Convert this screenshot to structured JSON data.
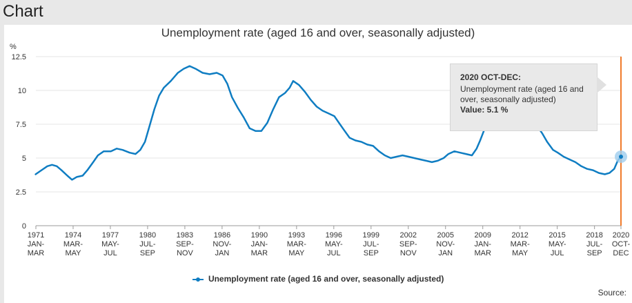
{
  "panel": {
    "title": "Chart"
  },
  "chart_data": {
    "type": "line",
    "title": "Unemployment rate (aged 16 and over, seasonally adjusted)",
    "ylabel": "%",
    "xlabel": "",
    "ylim": [
      0,
      12.5
    ],
    "xlim": [
      1971.125,
      2020.875
    ],
    "yticks": [
      {
        "value": 0,
        "label": "0"
      },
      {
        "value": 2.5,
        "label": "2.5"
      },
      {
        "value": 5,
        "label": "5"
      },
      {
        "value": 7.5,
        "label": "7.5"
      },
      {
        "value": 10,
        "label": "10"
      },
      {
        "value": 12.5,
        "label": "12.5"
      }
    ],
    "xticks": [
      {
        "x": 1971.125,
        "year": "1971",
        "period": "JAN-MAR"
      },
      {
        "x": 1974.292,
        "year": "1974",
        "period": "MAR-MAY"
      },
      {
        "x": 1977.458,
        "year": "1977",
        "period": "MAY-JUL"
      },
      {
        "x": 1980.625,
        "year": "1980",
        "period": "JUL-SEP"
      },
      {
        "x": 1983.792,
        "year": "1983",
        "period": "SEP-NOV"
      },
      {
        "x": 1986.958,
        "year": "1986",
        "period": "NOV-JAN"
      },
      {
        "x": 1990.125,
        "year": "1990",
        "period": "JAN-MAR"
      },
      {
        "x": 1993.292,
        "year": "1993",
        "period": "MAR-MAY"
      },
      {
        "x": 1996.458,
        "year": "1996",
        "period": "MAY-JUL"
      },
      {
        "x": 1999.625,
        "year": "1999",
        "period": "JUL-SEP"
      },
      {
        "x": 2002.792,
        "year": "2002",
        "period": "SEP-NOV"
      },
      {
        "x": 2005.958,
        "year": "2005",
        "period": "NOV-JAN"
      },
      {
        "x": 2009.125,
        "year": "2009",
        "period": "JAN-MAR"
      },
      {
        "x": 2012.292,
        "year": "2012",
        "period": "MAR-MAY"
      },
      {
        "x": 2015.458,
        "year": "2015",
        "period": "MAY-JUL"
      },
      {
        "x": 2018.625,
        "year": "2018",
        "period": "JUL-SEP"
      },
      {
        "x": 2020.875,
        "year": "2020",
        "period": "OCT-DEC"
      }
    ],
    "grid": true,
    "legend_position": "bottom-center",
    "series": [
      {
        "name": "Unemployment rate (aged 16 and over, seasonally adjusted)",
        "color": "#0f7dc2",
        "points": [
          [
            1971.1,
            3.8
          ],
          [
            1971.6,
            4.1
          ],
          [
            1972.1,
            4.4
          ],
          [
            1972.5,
            4.5
          ],
          [
            1972.9,
            4.4
          ],
          [
            1973.3,
            4.1
          ],
          [
            1973.8,
            3.7
          ],
          [
            1974.2,
            3.4
          ],
          [
            1974.6,
            3.6
          ],
          [
            1975.1,
            3.7
          ],
          [
            1975.5,
            4.1
          ],
          [
            1976.0,
            4.7
          ],
          [
            1976.4,
            5.2
          ],
          [
            1976.9,
            5.5
          ],
          [
            1977.5,
            5.5
          ],
          [
            1978.0,
            5.7
          ],
          [
            1978.5,
            5.6
          ],
          [
            1979.1,
            5.4
          ],
          [
            1979.6,
            5.3
          ],
          [
            1980.0,
            5.6
          ],
          [
            1980.4,
            6.2
          ],
          [
            1980.8,
            7.4
          ],
          [
            1981.2,
            8.6
          ],
          [
            1981.6,
            9.6
          ],
          [
            1982.0,
            10.2
          ],
          [
            1982.6,
            10.7
          ],
          [
            1983.2,
            11.3
          ],
          [
            1983.7,
            11.6
          ],
          [
            1984.2,
            11.8
          ],
          [
            1984.7,
            11.6
          ],
          [
            1985.3,
            11.3
          ],
          [
            1985.9,
            11.2
          ],
          [
            1986.5,
            11.3
          ],
          [
            1987.0,
            11.1
          ],
          [
            1987.4,
            10.5
          ],
          [
            1987.8,
            9.5
          ],
          [
            1988.3,
            8.7
          ],
          [
            1988.8,
            8.0
          ],
          [
            1989.3,
            7.2
          ],
          [
            1989.8,
            7.0
          ],
          [
            1990.3,
            7.0
          ],
          [
            1990.8,
            7.6
          ],
          [
            1991.3,
            8.6
          ],
          [
            1991.8,
            9.5
          ],
          [
            1992.3,
            9.8
          ],
          [
            1992.7,
            10.2
          ],
          [
            1993.0,
            10.7
          ],
          [
            1993.5,
            10.4
          ],
          [
            1994.0,
            9.9
          ],
          [
            1994.5,
            9.3
          ],
          [
            1995.0,
            8.8
          ],
          [
            1995.5,
            8.5
          ],
          [
            1996.0,
            8.3
          ],
          [
            1996.5,
            8.1
          ],
          [
            1996.9,
            7.6
          ],
          [
            1997.3,
            7.1
          ],
          [
            1997.8,
            6.5
          ],
          [
            1998.3,
            6.3
          ],
          [
            1998.8,
            6.2
          ],
          [
            1999.3,
            6.0
          ],
          [
            1999.8,
            5.9
          ],
          [
            2000.3,
            5.5
          ],
          [
            2000.8,
            5.2
          ],
          [
            2001.3,
            5.0
          ],
          [
            2001.8,
            5.1
          ],
          [
            2002.3,
            5.2
          ],
          [
            2002.8,
            5.1
          ],
          [
            2003.3,
            5.0
          ],
          [
            2003.8,
            4.9
          ],
          [
            2004.3,
            4.8
          ],
          [
            2004.8,
            4.7
          ],
          [
            2005.3,
            4.8
          ],
          [
            2005.8,
            5.0
          ],
          [
            2006.2,
            5.3
          ],
          [
            2006.7,
            5.5
          ],
          [
            2007.2,
            5.4
          ],
          [
            2007.7,
            5.3
          ],
          [
            2008.2,
            5.2
          ],
          [
            2008.6,
            5.7
          ],
          [
            2008.9,
            6.3
          ],
          [
            2009.3,
            7.2
          ],
          [
            2009.8,
            7.9
          ],
          [
            2010.3,
            7.9
          ],
          [
            2010.8,
            7.9
          ],
          [
            2011.3,
            7.9
          ],
          [
            2011.8,
            8.3
          ],
          [
            2012.3,
            8.1
          ],
          [
            2012.8,
            7.9
          ],
          [
            2013.3,
            7.8
          ],
          [
            2013.8,
            7.3
          ],
          [
            2014.2,
            6.8
          ],
          [
            2014.6,
            6.2
          ],
          [
            2015.1,
            5.6
          ],
          [
            2015.5,
            5.4
          ],
          [
            2016.0,
            5.1
          ],
          [
            2016.5,
            4.9
          ],
          [
            2017.0,
            4.7
          ],
          [
            2017.5,
            4.4
          ],
          [
            2018.0,
            4.2
          ],
          [
            2018.5,
            4.1
          ],
          [
            2019.0,
            3.9
          ],
          [
            2019.5,
            3.8
          ],
          [
            2019.9,
            3.9
          ],
          [
            2020.3,
            4.2
          ],
          [
            2020.6,
            4.8
          ],
          [
            2020.875,
            5.1
          ]
        ]
      }
    ],
    "highlight": {
      "x": 2020.875,
      "y": 5.1,
      "line_color": "#f07a2a"
    },
    "tooltip": {
      "heading": "2020 OCT-DEC",
      "heading_suffix": ":",
      "series_label": "Unemployment rate (aged 16 and over, seasonally adjusted)",
      "value_label": "Value: 5.1 %"
    },
    "source_label": "Source:"
  }
}
